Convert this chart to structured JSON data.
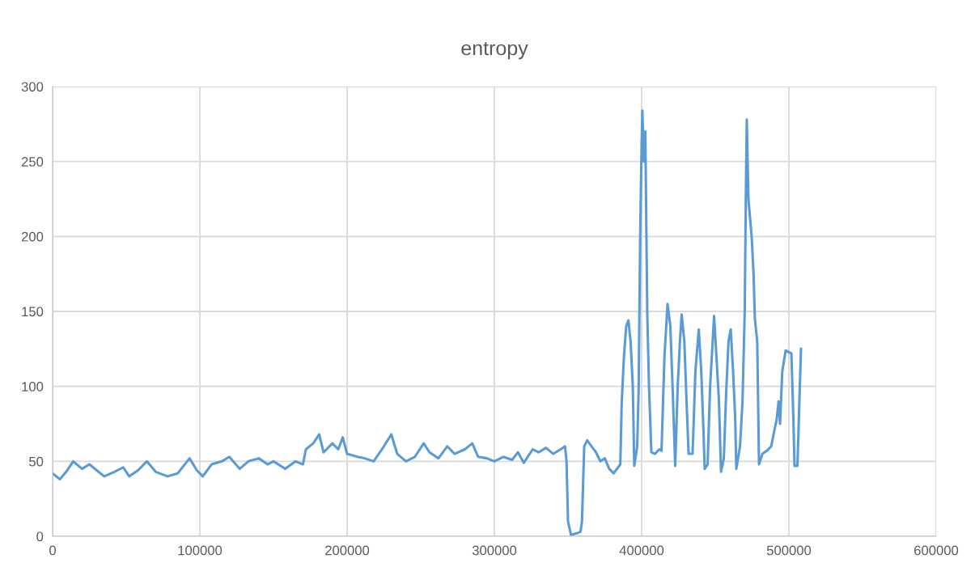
{
  "chart_data": {
    "type": "line",
    "title": "entropy",
    "x": [
      0,
      5000,
      10000,
      14000,
      20000,
      25000,
      30000,
      35000,
      42000,
      48000,
      52000,
      58000,
      64000,
      70000,
      78000,
      85000,
      93000,
      98000,
      102000,
      108000,
      115000,
      120000,
      127000,
      133000,
      140000,
      146000,
      150000,
      158000,
      165000,
      170000,
      172000,
      177000,
      181000,
      184000,
      190000,
      194000,
      197000,
      200000,
      207000,
      212000,
      218000,
      225000,
      230000,
      234000,
      240000,
      246000,
      252000,
      256000,
      262000,
      268000,
      273000,
      280000,
      285000,
      289000,
      295000,
      300000,
      306000,
      312000,
      316000,
      320000,
      326000,
      330000,
      335000,
      340000,
      345000,
      348000,
      349000,
      350000,
      352000,
      356000,
      358500,
      359500,
      361000,
      363000,
      366000,
      369000,
      372000,
      375000,
      378000,
      381000,
      384000,
      385500,
      386500,
      388000,
      389500,
      391000,
      392500,
      394000,
      395000,
      397000,
      398000,
      399000,
      400000,
      400500,
      401500,
      402500,
      403800,
      405000,
      406600,
      409000,
      412000,
      413500,
      415500,
      417600,
      419500,
      421000,
      422800,
      424500,
      426000,
      427200,
      429000,
      430500,
      431900,
      434600,
      436500,
      438800,
      440500,
      442000,
      442800,
      444800,
      446500,
      449200,
      450500,
      452500,
      453900,
      455800,
      457500,
      459000,
      460500,
      462100,
      463500,
      464300,
      466800,
      468500,
      470000,
      470800,
      471400,
      472500,
      474700,
      476000,
      476900,
      478500,
      479700,
      482000,
      485000,
      488000,
      490000,
      491700,
      493000,
      494000,
      495500,
      497800,
      499700,
      501700,
      503000,
      503800,
      505800,
      507000,
      508200
    ],
    "series": [
      {
        "color": "#5b9bd5",
        "values": [
          42,
          38,
          44,
          50,
          45,
          48,
          44,
          40,
          43,
          46,
          40,
          44,
          50,
          43,
          40,
          42,
          52,
          44,
          40,
          48,
          50,
          53,
          45,
          50,
          52,
          48,
          50,
          45,
          50,
          48,
          58,
          62,
          68,
          56,
          62,
          58,
          66,
          55,
          53,
          52,
          50,
          60,
          68,
          55,
          50,
          53,
          62,
          56,
          52,
          60,
          55,
          58,
          62,
          53,
          52,
          50,
          53,
          51,
          56,
          49,
          58,
          56,
          59,
          55,
          58,
          60,
          50,
          10,
          1,
          2,
          3,
          10,
          60,
          64,
          60,
          56,
          50,
          52,
          45,
          42,
          46,
          48,
          90,
          120,
          140,
          144,
          130,
          100,
          47,
          60,
          100,
          200,
          262,
          284,
          250,
          270,
          150,
          100,
          56,
          55,
          58,
          57,
          120,
          155,
          140,
          100,
          47,
          100,
          130,
          148,
          130,
          90,
          55,
          55,
          110,
          138,
          110,
          70,
          45,
          48,
          100,
          147,
          125,
          90,
          43,
          52,
          98,
          130,
          138,
          110,
          80,
          45,
          60,
          90,
          150,
          230,
          278,
          225,
          200,
          175,
          145,
          130,
          48,
          55,
          57,
          60,
          70,
          78,
          90,
          75,
          110,
          124,
          123,
          122,
          80,
          47,
          47,
          86,
          125
        ]
      }
    ],
    "xlim": [
      0,
      600000
    ],
    "ylim": [
      0,
      300
    ],
    "xticks": [
      0,
      100000,
      200000,
      300000,
      400000,
      500000,
      600000
    ],
    "yticks": [
      0,
      50,
      100,
      150,
      200,
      250,
      300
    ],
    "grid": true
  }
}
